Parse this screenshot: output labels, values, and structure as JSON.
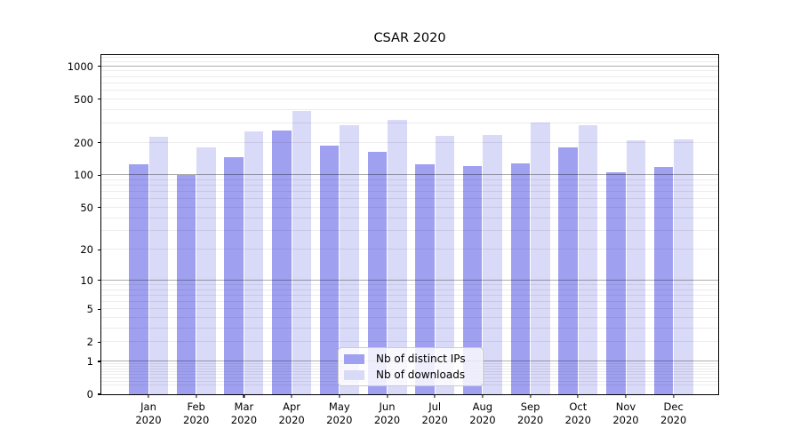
{
  "title": "CSAR 2020",
  "chart_data": {
    "type": "bar",
    "title": "CSAR 2020",
    "categories": [
      "Jan",
      "Feb",
      "Mar",
      "Apr",
      "May",
      "Jun",
      "Jul",
      "Aug",
      "Sep",
      "Oct",
      "Nov",
      "Dec"
    ],
    "x_tick_second_line": "2020",
    "series": [
      {
        "name": "Nb of distinct IPs",
        "color": "#a0a0f0",
        "values": [
          125,
          100,
          148,
          260,
          187,
          163,
          127,
          121,
          128,
          179,
          106,
          120
        ]
      },
      {
        "name": "Nb of downloads",
        "color": "#d9d9f8",
        "values": [
          228,
          181,
          251,
          391,
          290,
          322,
          229,
          233,
          303,
          289,
          211,
          212
        ]
      }
    ],
    "xlabel": "",
    "ylabel": "",
    "yscale": "log1p",
    "ylim": [
      0,
      1268
    ],
    "ytick_values": [
      1000,
      500,
      200,
      100,
      50,
      20,
      10,
      5,
      2,
      1,
      0
    ],
    "ytick_labels": [
      "1000",
      "500",
      "200",
      "100",
      "50",
      "20",
      "10",
      "5",
      "2",
      "1",
      "0"
    ],
    "major_grid_values": [
      1,
      10,
      100,
      1000
    ],
    "minor_grid_decades": [
      0.1,
      1,
      10,
      100
    ],
    "grid": true,
    "legend_position": "lower center",
    "frame_color": "#000000"
  },
  "legend": {
    "items": [
      {
        "label": "Nb of distinct IPs"
      },
      {
        "label": "Nb of downloads"
      }
    ]
  }
}
